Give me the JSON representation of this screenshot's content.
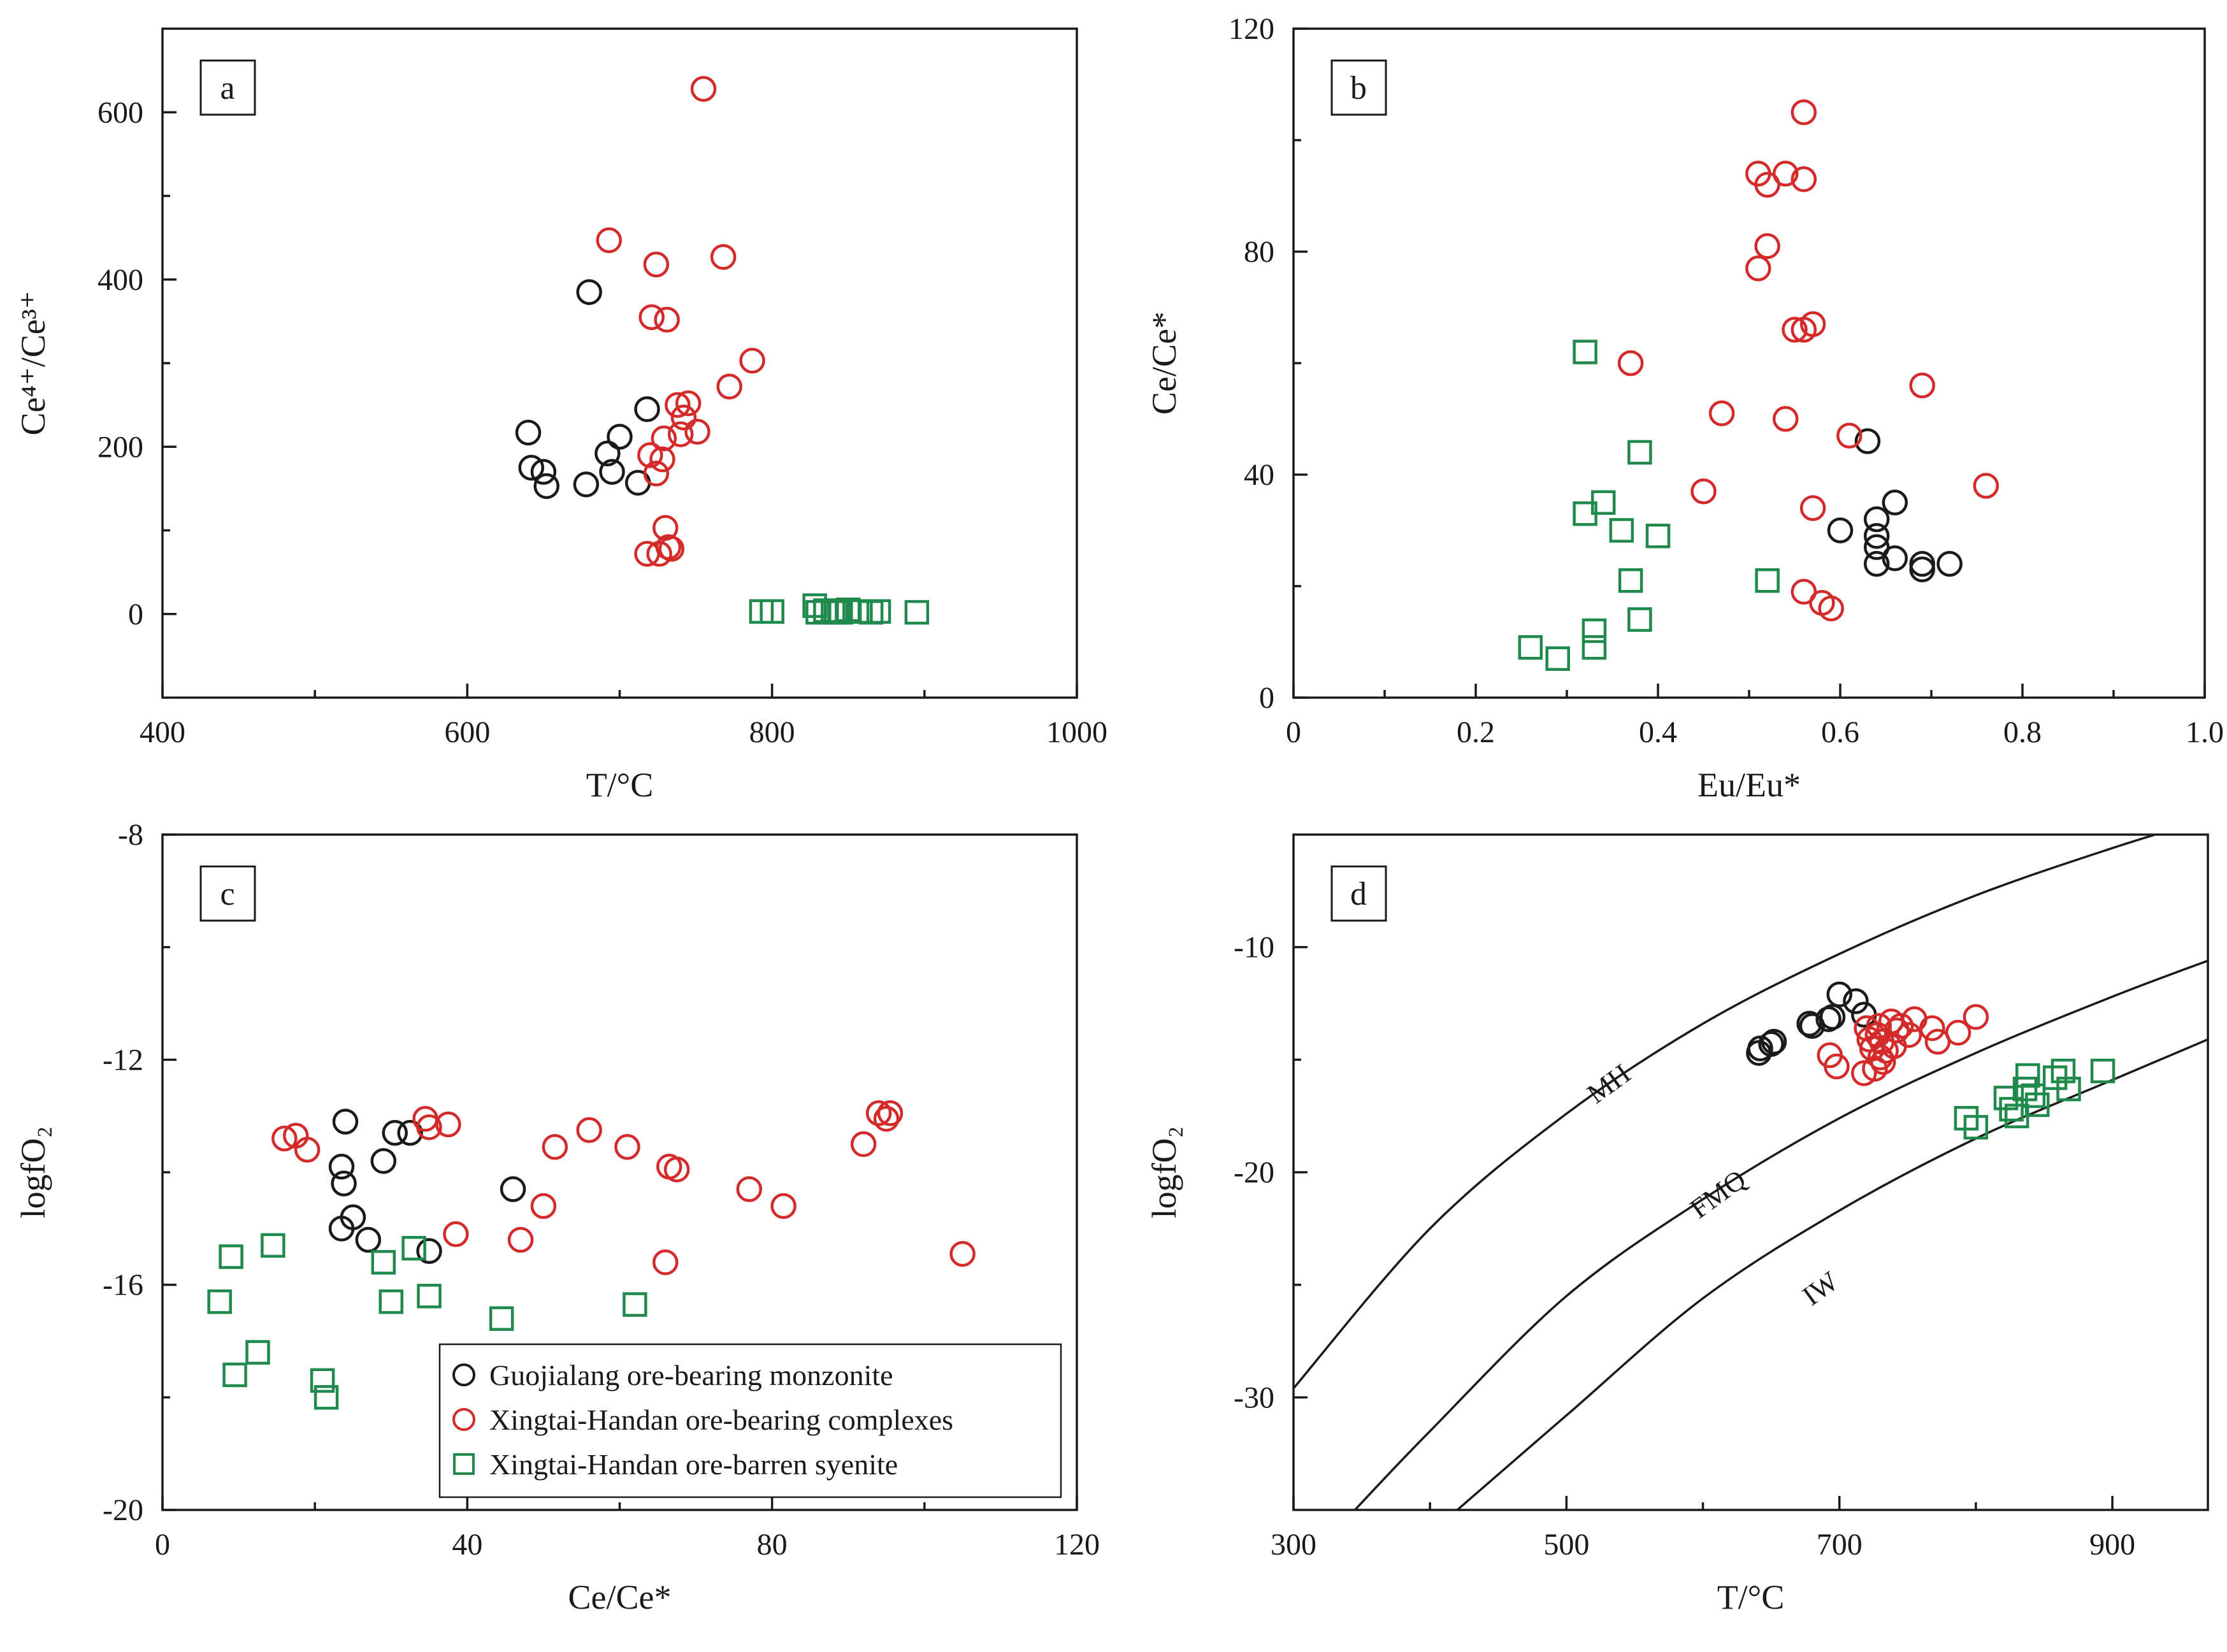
{
  "chart_data": [
    {
      "id": "a",
      "type": "scatter",
      "panel_label": "a",
      "xlabel": "T/°C",
      "ylabel": "Ce⁴⁺/Ce³⁺",
      "xlim": [
        400,
        1000
      ],
      "ylim": [
        -100,
        700
      ],
      "xticks": [
        400,
        600,
        800,
        1000
      ],
      "yticks": [
        0,
        200,
        400,
        600
      ],
      "series": [
        {
          "name": "Guojialang ore-bearing monzonite",
          "marker": "circle",
          "color": "#1a1a1a",
          "points": [
            [
              640,
              217
            ],
            [
              642,
              175
            ],
            [
              650,
              170
            ],
            [
              652,
              153
            ],
            [
              678,
              155
            ],
            [
              680,
              385
            ],
            [
              692,
              192
            ],
            [
              695,
              170
            ],
            [
              700,
              212
            ],
            [
              712,
              157
            ],
            [
              718,
              245
            ]
          ]
        },
        {
          "name": "Xingtai-Handan ore-bearing complexes",
          "marker": "circle",
          "color": "#d42a2a",
          "points": [
            [
              693,
              447
            ],
            [
              718,
              72
            ],
            [
              720,
              190
            ],
            [
              721,
              355
            ],
            [
              724,
              418
            ],
            [
              724,
              168
            ],
            [
              726,
              72
            ],
            [
              728,
              185
            ],
            [
              729,
              210
            ],
            [
              730,
              103
            ],
            [
              731,
              352
            ],
            [
              732,
              80
            ],
            [
              734,
              78
            ],
            [
              738,
              250
            ],
            [
              740,
              215
            ],
            [
              742,
              235
            ],
            [
              745,
              252
            ],
            [
              751,
              218
            ],
            [
              755,
              628
            ],
            [
              768,
              427
            ],
            [
              772,
              272
            ],
            [
              787,
              303
            ]
          ]
        },
        {
          "name": "Xingtai-Handan ore-barren syenite",
          "marker": "square",
          "color": "#1f8a4c",
          "points": [
            [
              793,
              3
            ],
            [
              800,
              3
            ],
            [
              828,
              10
            ],
            [
              830,
              2
            ],
            [
              835,
              4
            ],
            [
              840,
              2
            ],
            [
              842,
              3
            ],
            [
              845,
              2
            ],
            [
              850,
              5
            ],
            [
              858,
              3
            ],
            [
              865,
              2
            ],
            [
              870,
              3
            ],
            [
              895,
              2
            ]
          ]
        }
      ]
    },
    {
      "id": "b",
      "type": "scatter",
      "panel_label": "b",
      "xlabel": "Eu/Eu*",
      "ylabel": "Ce/Ce*",
      "xlim": [
        0,
        1.0
      ],
      "ylim": [
        0,
        120
      ],
      "xticks": [
        0,
        0.2,
        0.4,
        0.6,
        0.8,
        1.0
      ],
      "xtick_labels": [
        "0",
        "0.2",
        "0.4",
        "0.6",
        "0.8",
        "1.0"
      ],
      "yticks": [
        0,
        40,
        80,
        120
      ],
      "series": [
        {
          "name": "Guojialang ore-bearing monzonite",
          "marker": "circle",
          "color": "#1a1a1a",
          "points": [
            [
              0.6,
              30
            ],
            [
              0.63,
              46
            ],
            [
              0.64,
              32
            ],
            [
              0.64,
              29
            ],
            [
              0.64,
              27
            ],
            [
              0.64,
              24
            ],
            [
              0.66,
              35
            ],
            [
              0.66,
              25
            ],
            [
              0.69,
              24
            ],
            [
              0.69,
              23
            ],
            [
              0.72,
              24
            ]
          ]
        },
        {
          "name": "Xingtai-Handan ore-bearing complexes",
          "marker": "circle",
          "color": "#d42a2a",
          "points": [
            [
              0.37,
              60
            ],
            [
              0.45,
              37
            ],
            [
              0.47,
              51
            ],
            [
              0.51,
              94
            ],
            [
              0.51,
              77
            ],
            [
              0.52,
              92
            ],
            [
              0.52,
              81
            ],
            [
              0.54,
              94
            ],
            [
              0.54,
              50
            ],
            [
              0.55,
              66
            ],
            [
              0.56,
              105
            ],
            [
              0.56,
              93
            ],
            [
              0.56,
              66
            ],
            [
              0.56,
              19
            ],
            [
              0.57,
              67
            ],
            [
              0.57,
              34
            ],
            [
              0.58,
              17
            ],
            [
              0.59,
              16
            ],
            [
              0.61,
              47
            ],
            [
              0.69,
              56
            ],
            [
              0.76,
              38
            ]
          ]
        },
        {
          "name": "Xingtai-Handan ore-barren syenite",
          "marker": "square",
          "color": "#1f8a4c",
          "points": [
            [
              0.26,
              9
            ],
            [
              0.29,
              7
            ],
            [
              0.32,
              62
            ],
            [
              0.32,
              33
            ],
            [
              0.33,
              12
            ],
            [
              0.33,
              9
            ],
            [
              0.34,
              35
            ],
            [
              0.36,
              30
            ],
            [
              0.37,
              21
            ],
            [
              0.38,
              44
            ],
            [
              0.38,
              14
            ],
            [
              0.4,
              29
            ],
            [
              0.52,
              21
            ]
          ]
        }
      ]
    },
    {
      "id": "c",
      "type": "scatter",
      "panel_label": "c",
      "xlabel": "Ce/Ce*",
      "ylabel": "logfO₂",
      "xlim": [
        0,
        120
      ],
      "ylim": [
        -20,
        -8
      ],
      "xticks": [
        0,
        40,
        80,
        120
      ],
      "yticks": [
        -20,
        -16,
        -12,
        -8
      ],
      "series": [
        {
          "name": "Guojialang ore-bearing monzonite",
          "marker": "circle",
          "color": "#1a1a1a",
          "points": [
            [
              23.5,
              -13.9
            ],
            [
              23.8,
              -14.2
            ],
            [
              24,
              -13.1
            ],
            [
              23.5,
              -15
            ],
            [
              25,
              -14.8
            ],
            [
              27,
              -15.2
            ],
            [
              29,
              -13.8
            ],
            [
              30.5,
              -13.3
            ],
            [
              32.5,
              -13.3
            ],
            [
              35,
              -15.4
            ],
            [
              46,
              -14.3
            ]
          ]
        },
        {
          "name": "Xingtai-Handan ore-bearing complexes",
          "marker": "circle",
          "color": "#d42a2a",
          "points": [
            [
              16,
              -13.4
            ],
            [
              17.5,
              -13.35
            ],
            [
              19,
              -13.6
            ],
            [
              34.5,
              -13.05
            ],
            [
              35,
              -13.2
            ],
            [
              37.5,
              -13.15
            ],
            [
              38.5,
              -15.1
            ],
            [
              47,
              -15.2
            ],
            [
              50,
              -14.6
            ],
            [
              51.5,
              -13.55
            ],
            [
              56,
              -13.25
            ],
            [
              61,
              -13.55
            ],
            [
              66,
              -15.6
            ],
            [
              66.5,
              -13.9
            ],
            [
              67.5,
              -13.95
            ],
            [
              77,
              -14.3
            ],
            [
              81.5,
              -14.6
            ],
            [
              92,
              -13.5
            ],
            [
              94,
              -12.95
            ],
            [
              95,
              -13.05
            ],
            [
              95.5,
              -12.95
            ],
            [
              105,
              -15.45
            ]
          ]
        },
        {
          "name": "Xingtai-Handan ore-barren syenite",
          "marker": "square",
          "color": "#1f8a4c",
          "points": [
            [
              7.5,
              -16.3
            ],
            [
              9,
              -15.5
            ],
            [
              9.5,
              -17.6
            ],
            [
              12.5,
              -17.2
            ],
            [
              14.5,
              -15.3
            ],
            [
              21,
              -17.7
            ],
            [
              21.5,
              -18
            ],
            [
              29,
              -15.6
            ],
            [
              30,
              -16.3
            ],
            [
              33,
              -15.35
            ],
            [
              35,
              -16.2
            ],
            [
              44.5,
              -16.6
            ],
            [
              62,
              -16.35
            ]
          ]
        }
      ],
      "legend": {
        "position": "bottom-right",
        "entries": [
          {
            "label": "Guojialang ore-bearing monzonite",
            "marker": "circle",
            "color": "#1a1a1a"
          },
          {
            "label": "Xingtai-Handan ore-bearing complexes",
            "marker": "circle",
            "color": "#d42a2a"
          },
          {
            "label": "Xingtai-Handan ore-barren syenite",
            "marker": "square",
            "color": "#1f8a4c"
          }
        ]
      }
    },
    {
      "id": "d",
      "type": "scatter",
      "panel_label": "d",
      "xlabel": "T/°C",
      "ylabel": "logfO₂",
      "xlim": [
        300,
        970
      ],
      "ylim": [
        -35,
        -5
      ],
      "xticks": [
        300,
        500,
        700,
        900
      ],
      "yticks": [
        -30,
        -20,
        -10
      ],
      "buffer_curves": [
        {
          "name": "MH",
          "points": [
            [
              300,
              -29.6
            ],
            [
              400,
              -22.5
            ],
            [
              500,
              -17.4
            ],
            [
              600,
              -13.4
            ],
            [
              700,
              -10.3
            ],
            [
              800,
              -7.7
            ],
            [
              900,
              -5.6
            ],
            [
              970,
              -4.3
            ]
          ]
        },
        {
          "name": "FMQ",
          "points": [
            [
              345,
              -35
            ],
            [
              400,
              -31.5
            ],
            [
              500,
              -25.5
            ],
            [
              600,
              -21.2
            ],
            [
              700,
              -17.6
            ],
            [
              800,
              -14.7
            ],
            [
              900,
              -12.2
            ],
            [
              970,
              -10.6
            ]
          ]
        },
        {
          "name": "IW",
          "points": [
            [
              420,
              -35
            ],
            [
              500,
              -30.8
            ],
            [
              600,
              -25.6
            ],
            [
              700,
              -21.7
            ],
            [
              800,
              -18.5
            ],
            [
              900,
              -15.9
            ],
            [
              970,
              -14.1
            ]
          ]
        }
      ],
      "buffer_label_anchors": [
        {
          "name": "MH",
          "x": 535,
          "y": -16.4
        },
        {
          "name": "FMQ",
          "x": 615,
          "y": -21.3
        },
        {
          "name": "IW",
          "x": 690,
          "y": -25.5
        }
      ],
      "series": [
        {
          "name": "Guojialang ore-bearing monzonite",
          "marker": "circle",
          "color": "#1a1a1a",
          "points": [
            [
              641,
              -14.7
            ],
            [
              642,
              -14.5
            ],
            [
              650,
              -14.3
            ],
            [
              652,
              -14.2
            ],
            [
              678,
              -13.4
            ],
            [
              680,
              -13.5
            ],
            [
              692,
              -13.2
            ],
            [
              695,
              -13.1
            ],
            [
              700,
              -12.1
            ],
            [
              712,
              -12.4
            ],
            [
              718,
              -13
            ]
          ]
        },
        {
          "name": "Xingtai-Handan ore-bearing complexes",
          "marker": "circle",
          "color": "#d42a2a",
          "points": [
            [
              693,
              -14.8
            ],
            [
              698,
              -15.3
            ],
            [
              718,
              -15.6
            ],
            [
              720,
              -13.6
            ],
            [
              722,
              -14.1
            ],
            [
              724,
              -14.5
            ],
            [
              726,
              -15.4
            ],
            [
              728,
              -13.9
            ],
            [
              729,
              -13.5
            ],
            [
              730,
              -14.9
            ],
            [
              731,
              -14.2
            ],
            [
              732,
              -15.1
            ],
            [
              734,
              -14.6
            ],
            [
              738,
              -13.3
            ],
            [
              740,
              -14.4
            ],
            [
              742,
              -13.7
            ],
            [
              745,
              -13.5
            ],
            [
              751,
              -13.9
            ],
            [
              755,
              -13.2
            ],
            [
              768,
              -13.6
            ],
            [
              772,
              -14.2
            ],
            [
              787,
              -13.8
            ],
            [
              800,
              -13.1
            ]
          ]
        },
        {
          "name": "Xingtai-Handan ore-barren syenite",
          "marker": "square",
          "color": "#1f8a4c",
          "points": [
            [
              793,
              -17.6
            ],
            [
              800,
              -18
            ],
            [
              822,
              -16.7
            ],
            [
              826,
              -17.2
            ],
            [
              830,
              -17.5
            ],
            [
              836,
              -16.3
            ],
            [
              838,
              -15.7
            ],
            [
              842,
              -16.6
            ],
            [
              845,
              -17
            ],
            [
              858,
              -15.8
            ],
            [
              864,
              -15.5
            ],
            [
              868,
              -16.3
            ],
            [
              893,
              -15.5
            ]
          ]
        }
      ]
    }
  ]
}
